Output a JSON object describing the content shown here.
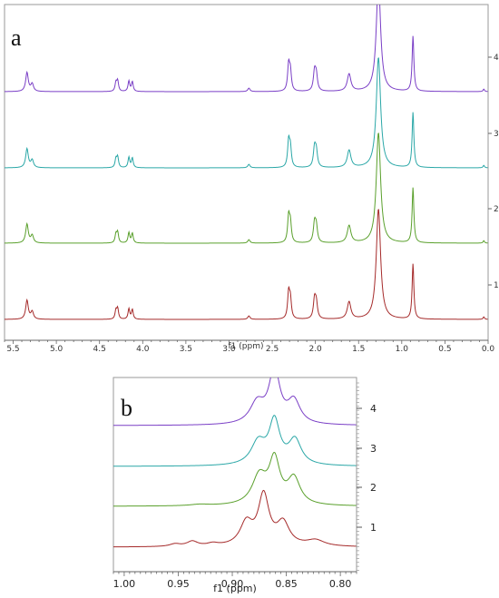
{
  "chart_data": [
    {
      "panel": "a",
      "type": "line",
      "xlabel": "f1 (ppm)",
      "x_reversed": true,
      "xlim": [
        5.6,
        0.0
      ],
      "x_ticks": [
        "5.5",
        "5.0",
        "4.5",
        "4.0",
        "3.5",
        "3.0",
        "2.5",
        "2.0",
        "1.5",
        "1.0",
        "0.5",
        "0.0"
      ],
      "x_tick_values": [
        5.5,
        5.0,
        4.5,
        4.0,
        3.5,
        3.0,
        2.5,
        2.0,
        1.5,
        1.0,
        0.5,
        0.0
      ],
      "trace_labels": [
        "1",
        "2",
        "3",
        "4"
      ],
      "series": [
        {
          "color": "#a52a2a",
          "label": "1"
        },
        {
          "color": "#5aa02c",
          "label": "2"
        },
        {
          "color": "#2aa7a7",
          "label": "3"
        },
        {
          "color": "#7a3fc6",
          "label": "4"
        }
      ],
      "peaks_ppm": [
        5.34,
        5.28,
        4.29,
        4.14,
        2.77,
        2.31,
        2.01,
        1.61,
        1.27,
        0.87,
        0.05
      ],
      "peaks": [
        {
          "x": 5.34,
          "h": 0.55,
          "w": 0.018
        },
        {
          "x": 5.28,
          "h": 0.22,
          "w": 0.018
        },
        {
          "x": 4.29,
          "h": 0.3,
          "w": 0.012
        },
        {
          "x": 4.31,
          "h": 0.25,
          "w": 0.012
        },
        {
          "x": 4.16,
          "h": 0.3,
          "w": 0.012
        },
        {
          "x": 4.12,
          "h": 0.28,
          "w": 0.012
        },
        {
          "x": 2.77,
          "h": 0.1,
          "w": 0.015
        },
        {
          "x": 2.31,
          "h": 0.75,
          "w": 0.014
        },
        {
          "x": 2.29,
          "h": 0.55,
          "w": 0.014
        },
        {
          "x": 2.01,
          "h": 0.55,
          "w": 0.016
        },
        {
          "x": 1.99,
          "h": 0.45,
          "w": 0.016
        },
        {
          "x": 1.61,
          "h": 0.5,
          "w": 0.025
        },
        {
          "x": 1.27,
          "h": 3.2,
          "w": 0.03
        },
        {
          "x": 0.87,
          "h": 1.6,
          "w": 0.012
        },
        {
          "x": 0.05,
          "h": 0.07,
          "w": 0.01
        }
      ]
    },
    {
      "panel": "b",
      "type": "line",
      "xlabel": "f1 (ppm)",
      "x_reversed": true,
      "xlim": [
        1.01,
        0.785
      ],
      "x_ticks": [
        "1.00",
        "0.95",
        "0.90",
        "0.85",
        "0.80"
      ],
      "x_tick_values": [
        1.0,
        0.95,
        0.9,
        0.85,
        0.8
      ],
      "trace_labels": [
        "1",
        "2",
        "3",
        "4"
      ],
      "series": [
        {
          "color": "#a52a2a",
          "label": "1",
          "peaks": [
            [
              0.887,
              0.45,
              0.007
            ],
            [
              0.871,
              1.0,
              0.006
            ],
            [
              0.853,
              0.45,
              0.007
            ],
            [
              0.823,
              0.12,
              0.01
            ],
            [
              0.937,
              0.1,
              0.006
            ],
            [
              0.953,
              0.05,
              0.006
            ],
            [
              0.918,
              0.05,
              0.006
            ]
          ]
        },
        {
          "color": "#5aa02c",
          "label": "2",
          "peaks": [
            [
              0.875,
              0.65,
              0.008
            ],
            [
              0.861,
              1.0,
              0.006
            ],
            [
              0.843,
              0.6,
              0.007
            ],
            [
              0.93,
              0.03,
              0.01
            ]
          ]
        },
        {
          "color": "#2aa7a7",
          "label": "3",
          "peaks": [
            [
              0.876,
              0.5,
              0.008
            ],
            [
              0.861,
              0.95,
              0.006
            ],
            [
              0.842,
              0.55,
              0.007
            ]
          ]
        },
        {
          "color": "#7a3fc6",
          "label": "4",
          "peaks": [
            [
              0.877,
              0.55,
              0.008
            ],
            [
              0.861,
              1.4,
              0.006
            ],
            [
              0.843,
              0.6,
              0.007
            ]
          ]
        }
      ]
    }
  ],
  "panel_labels": {
    "a": "a",
    "b": "b"
  }
}
